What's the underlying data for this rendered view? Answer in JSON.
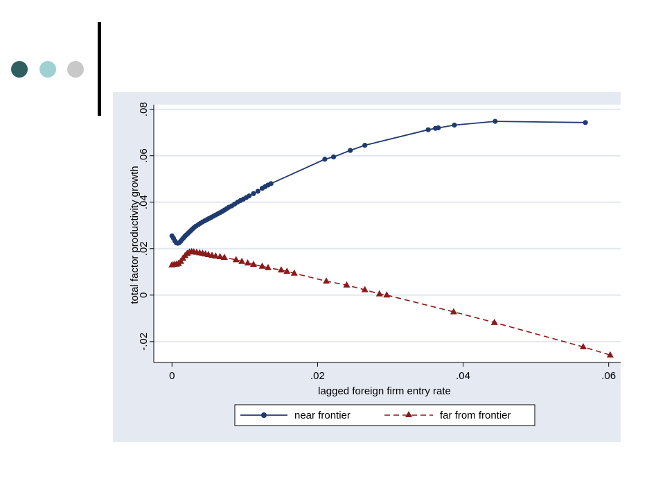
{
  "slide": {
    "bullet_colors": [
      "#2f5f5e",
      "#9fd0d2",
      "#c8c8c8"
    ],
    "rule_color": "#000000"
  },
  "chart_data": {
    "type": "line",
    "xlabel": "lagged foreign firm entry rate",
    "ylabel": "total factor productivity growth",
    "xlim": [
      -0.0025,
      0.0625
    ],
    "ylim": [
      -0.029,
      0.082
    ],
    "xticks": [
      0,
      0.02,
      0.04,
      0.06
    ],
    "xtick_labels": [
      "0",
      ".02",
      ".04",
      ".06"
    ],
    "yticks": [
      -0.02,
      0,
      0.02,
      0.04,
      0.06,
      0.08
    ],
    "ytick_labels": [
      "-.02",
      "0",
      ".02",
      ".04",
      ".06",
      ".08"
    ],
    "grid": true,
    "legend_position": "bottom",
    "colors": {
      "panel": "#e5e9f2",
      "plot": "#ffffff",
      "grid": "#e3e7ef"
    },
    "series": [
      {
        "name": "near frontier",
        "color": "#1f3a6e",
        "marker": "circle",
        "line": "solid",
        "points": [
          [
            0.0,
            0.0255
          ],
          [
            0.0002,
            0.0245
          ],
          [
            0.0004,
            0.0233
          ],
          [
            0.0006,
            0.0225
          ],
          [
            0.0008,
            0.0223
          ],
          [
            0.001,
            0.0226
          ],
          [
            0.0012,
            0.0232
          ],
          [
            0.0014,
            0.024
          ],
          [
            0.0016,
            0.0247
          ],
          [
            0.0018,
            0.0254
          ],
          [
            0.002,
            0.026
          ],
          [
            0.0022,
            0.0266
          ],
          [
            0.0024,
            0.0272
          ],
          [
            0.0026,
            0.0278
          ],
          [
            0.0028,
            0.0284
          ],
          [
            0.003,
            0.029
          ],
          [
            0.0033,
            0.0297
          ],
          [
            0.0036,
            0.0303
          ],
          [
            0.0039,
            0.0309
          ],
          [
            0.0042,
            0.0315
          ],
          [
            0.0045,
            0.032
          ],
          [
            0.0048,
            0.0325
          ],
          [
            0.0051,
            0.033
          ],
          [
            0.0054,
            0.0335
          ],
          [
            0.0057,
            0.034
          ],
          [
            0.006,
            0.0345
          ],
          [
            0.0063,
            0.035
          ],
          [
            0.0066,
            0.0355
          ],
          [
            0.0069,
            0.036
          ],
          [
            0.0072,
            0.0366
          ],
          [
            0.0075,
            0.0372
          ],
          [
            0.0078,
            0.0378
          ],
          [
            0.0082,
            0.0384
          ],
          [
            0.0086,
            0.0392
          ],
          [
            0.009,
            0.04
          ],
          [
            0.0094,
            0.0407
          ],
          [
            0.0098,
            0.0413
          ],
          [
            0.0102,
            0.042
          ],
          [
            0.0106,
            0.0427
          ],
          [
            0.0112,
            0.0437
          ],
          [
            0.0118,
            0.0447
          ],
          [
            0.0124,
            0.046
          ],
          [
            0.0128,
            0.0467
          ],
          [
            0.0132,
            0.0474
          ],
          [
            0.0136,
            0.048
          ],
          [
            0.021,
            0.0585
          ],
          [
            0.0222,
            0.0595
          ],
          [
            0.0245,
            0.0623
          ],
          [
            0.0265,
            0.0645
          ],
          [
            0.0352,
            0.0712
          ],
          [
            0.0362,
            0.0718
          ],
          [
            0.0366,
            0.072
          ],
          [
            0.0388,
            0.0732
          ],
          [
            0.0444,
            0.0748
          ],
          [
            0.0568,
            0.0743
          ]
        ]
      },
      {
        "name": "far from frontier",
        "color": "#8b1a1a",
        "marker": "triangle",
        "line": "dashed",
        "points": [
          [
            0.0,
            0.013
          ],
          [
            0.0003,
            0.0132
          ],
          [
            0.0006,
            0.0133
          ],
          [
            0.0009,
            0.0136
          ],
          [
            0.0012,
            0.0145
          ],
          [
            0.0015,
            0.0158
          ],
          [
            0.0018,
            0.017
          ],
          [
            0.0021,
            0.018
          ],
          [
            0.0024,
            0.0185
          ],
          [
            0.0027,
            0.0187
          ],
          [
            0.003,
            0.0186
          ],
          [
            0.0034,
            0.0184
          ],
          [
            0.0038,
            0.0182
          ],
          [
            0.0042,
            0.018
          ],
          [
            0.0046,
            0.0177
          ],
          [
            0.005,
            0.0174
          ],
          [
            0.0055,
            0.0171
          ],
          [
            0.006,
            0.0168
          ],
          [
            0.0066,
            0.0165
          ],
          [
            0.0072,
            0.0162
          ],
          [
            0.0088,
            0.0152
          ],
          [
            0.0096,
            0.0145
          ],
          [
            0.0104,
            0.0138
          ],
          [
            0.0112,
            0.0132
          ],
          [
            0.0124,
            0.0124
          ],
          [
            0.0132,
            0.0118
          ],
          [
            0.015,
            0.0108
          ],
          [
            0.0158,
            0.0102
          ],
          [
            0.0168,
            0.0094
          ],
          [
            0.0212,
            0.006
          ],
          [
            0.024,
            0.0043
          ],
          [
            0.0265,
            0.0023
          ],
          [
            0.0285,
            0.0005
          ],
          [
            0.0295,
            0.0
          ],
          [
            0.0387,
            -0.0072
          ],
          [
            0.0443,
            -0.0118
          ],
          [
            0.0565,
            -0.0223
          ],
          [
            0.0602,
            -0.0258
          ]
        ]
      }
    ]
  }
}
